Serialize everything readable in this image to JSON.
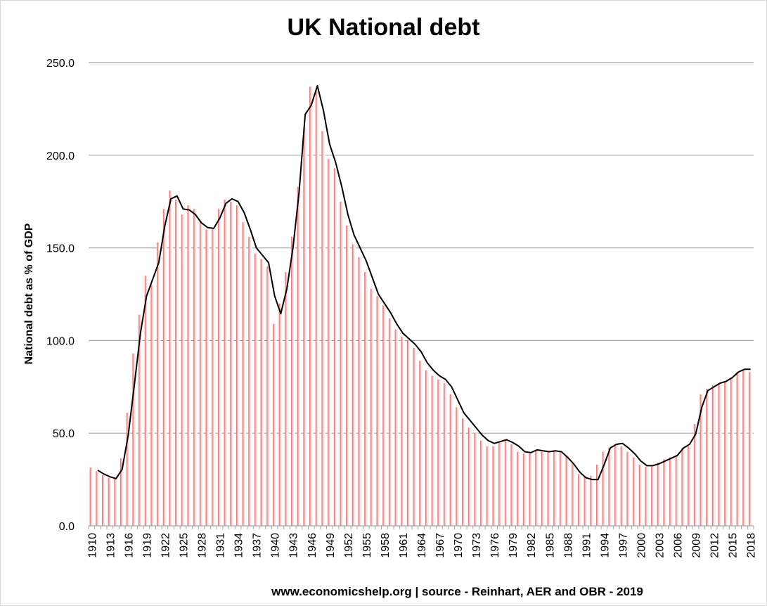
{
  "chart_data": {
    "type": "bar",
    "title": "UK National debt",
    "ylabel": "National debt as % of GDP",
    "xlabel": "",
    "footer": "www.economicshelp.org | source - Reinhart, AER and OBR - 2019",
    "ylim": [
      0,
      250
    ],
    "yticks": [
      "0.0",
      "50.0",
      "100.0",
      "150.0",
      "200.0",
      "250.0"
    ],
    "grid": true,
    "x_tick_labels": [
      "1910",
      "1913",
      "1916",
      "1919",
      "1922",
      "1925",
      "1928",
      "1931",
      "1934",
      "1937",
      "1940",
      "1943",
      "1946",
      "1949",
      "1952",
      "1955",
      "1958",
      "1961",
      "1964",
      "1967",
      "1970",
      "1973",
      "1976",
      "1979",
      "1982",
      "1985",
      "1988",
      "1991",
      "1994",
      "1997",
      "2000",
      "2003",
      "2006",
      "2009",
      "2012",
      "2015",
      "2018"
    ],
    "bar_color": "#e06666",
    "line_color": "#000000",
    "x": [
      1910,
      1911,
      1912,
      1913,
      1914,
      1915,
      1916,
      1917,
      1918,
      1919,
      1920,
      1921,
      1922,
      1923,
      1924,
      1925,
      1926,
      1927,
      1928,
      1929,
      1930,
      1931,
      1932,
      1933,
      1934,
      1935,
      1936,
      1937,
      1938,
      1939,
      1940,
      1941,
      1942,
      1943,
      1944,
      1945,
      1946,
      1947,
      1948,
      1949,
      1950,
      1951,
      1952,
      1953,
      1954,
      1955,
      1956,
      1957,
      1958,
      1959,
      1960,
      1961,
      1962,
      1963,
      1964,
      1965,
      1966,
      1967,
      1968,
      1969,
      1970,
      1971,
      1972,
      1973,
      1974,
      1975,
      1976,
      1977,
      1978,
      1979,
      1980,
      1981,
      1982,
      1983,
      1984,
      1985,
      1986,
      1987,
      1988,
      1989,
      1990,
      1991,
      1992,
      1993,
      1994,
      1995,
      1996,
      1997,
      1998,
      1999,
      2000,
      2001,
      2002,
      2003,
      2004,
      2005,
      2006,
      2007,
      2008,
      2009,
      2010,
      2011,
      2012,
      2013,
      2014,
      2015,
      2016,
      2017,
      2018
    ],
    "series": [
      {
        "type": "bar",
        "values": [
          31.5,
          29.5,
          27.5,
          26,
          25.5,
          36.5,
          61,
          93,
          114,
          135,
          130,
          153,
          171,
          181,
          176,
          168,
          173,
          171,
          164,
          160,
          160,
          171,
          176,
          175,
          173,
          164,
          156,
          147,
          144,
          140,
          109,
          120,
          137,
          156,
          183,
          215,
          237,
          235,
          213,
          198,
          193,
          175,
          162,
          152,
          145,
          137,
          128,
          124,
          119,
          112,
          106,
          102,
          100,
          96,
          89,
          84,
          81,
          79,
          77,
          71,
          64,
          58,
          53,
          50,
          46,
          43,
          43,
          45,
          46,
          44,
          40,
          39,
          39,
          41,
          40,
          40,
          40,
          40,
          38,
          34,
          28,
          27,
          27,
          33,
          40,
          42,
          44,
          43,
          40,
          37,
          33,
          32,
          32,
          34,
          36,
          37,
          38,
          42,
          43,
          55,
          71,
          74,
          76,
          77,
          78,
          80,
          83,
          84,
          83
        ]
      },
      {
        "type": "line",
        "values": [
          null,
          30,
          28,
          26.5,
          25.5,
          30.5,
          49,
          76,
          104,
          124,
          133,
          142,
          162,
          176.5,
          178,
          171,
          170.5,
          168,
          163.5,
          161,
          160.5,
          166,
          174,
          176.5,
          175,
          169,
          160,
          150,
          146,
          142,
          124,
          114.5,
          128,
          150,
          180,
          222,
          227,
          237.5,
          224,
          206,
          196,
          183,
          168,
          157,
          150,
          143,
          134,
          125,
          120,
          115,
          109,
          104,
          101,
          98,
          94,
          88,
          84,
          81,
          79,
          75,
          68,
          61,
          57,
          53,
          49,
          46,
          44.5,
          45.5,
          46.5,
          45,
          43,
          40,
          39.5,
          41,
          40.5,
          40,
          40.5,
          40,
          37,
          33.5,
          29,
          26,
          25,
          25,
          33,
          42,
          44,
          44.5,
          42,
          39,
          35,
          32.5,
          32.5,
          33.5,
          35,
          36.5,
          38,
          42,
          44,
          49.5,
          64,
          73,
          75,
          77,
          78,
          80,
          83,
          84.5,
          84.5
        ]
      }
    ]
  }
}
